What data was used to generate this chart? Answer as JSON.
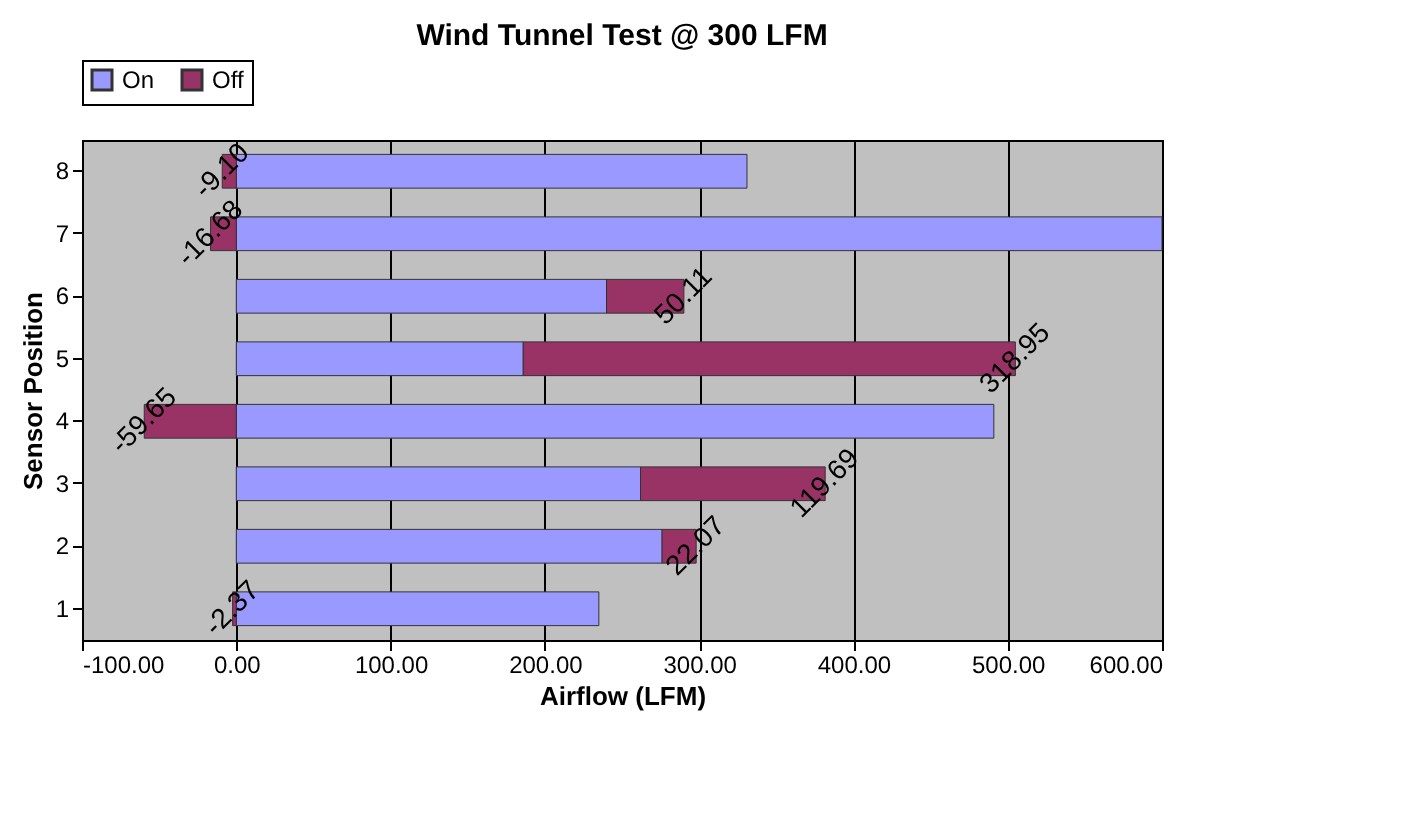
{
  "chart_data": {
    "type": "bar",
    "orientation": "horizontal",
    "stacked": true,
    "title": "Wind Tunnel Test @ 300 LFM",
    "xlabel": "Airflow (LFM)",
    "ylabel": "Sensor Position",
    "categories": [
      "8",
      "7",
      "6",
      "5",
      "4",
      "3",
      "2",
      "1"
    ],
    "series": [
      {
        "name": "On",
        "color": "#9999ff",
        "values": [
          331,
          600,
          240,
          186,
          491,
          262,
          276,
          235
        ]
      },
      {
        "name": "Off",
        "color": "#993366",
        "values": [
          -9.1,
          -16.68,
          50.11,
          318.95,
          -59.65,
          119.69,
          22.07,
          -2.37
        ],
        "value_labels": [
          "-9.10",
          "-16.68",
          "50.11",
          "318.95",
          "-59.65",
          "119.69",
          "22.07",
          "-2.37"
        ]
      }
    ],
    "xlim": [
      -100,
      600
    ],
    "xticks": [
      {
        "value": -100,
        "label": "-100.00"
      },
      {
        "value": 0,
        "label": "0.00"
      },
      {
        "value": 100,
        "label": "100.00"
      },
      {
        "value": 200,
        "label": "200.00"
      },
      {
        "value": 300,
        "label": "300.00"
      },
      {
        "value": 400,
        "label": "400.00"
      },
      {
        "value": 500,
        "label": "500.00"
      },
      {
        "value": 600,
        "label": "600.00"
      }
    ],
    "grid": "x",
    "legend": "top"
  }
}
